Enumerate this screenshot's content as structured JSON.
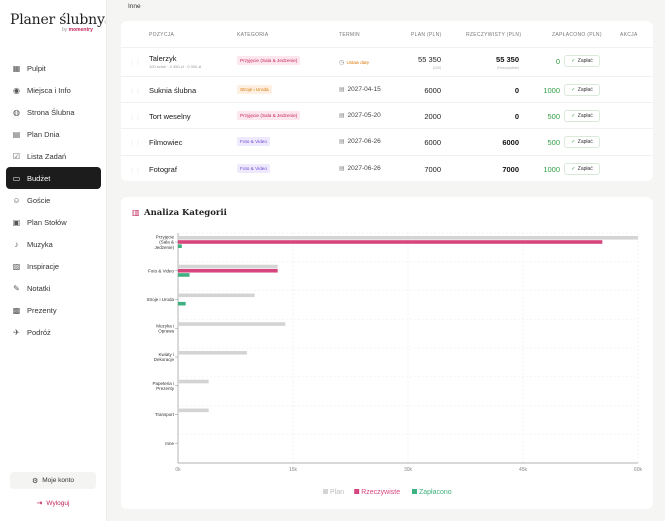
{
  "brand": {
    "title": "Planer ślubny",
    "by": "by",
    "company": "momentry"
  },
  "sidebar": {
    "items": [
      {
        "label": "Pulpit",
        "icon": "grid-icon"
      },
      {
        "label": "Miejsca i Info",
        "icon": "map-pin-icon"
      },
      {
        "label": "Strona Ślubna",
        "icon": "globe-icon"
      },
      {
        "label": "Plan Dnia",
        "icon": "calendar-icon"
      },
      {
        "label": "Lista Zadań",
        "icon": "checklist-icon"
      },
      {
        "label": "Budżet",
        "icon": "wallet-icon",
        "active": true
      },
      {
        "label": "Goście",
        "icon": "users-icon"
      },
      {
        "label": "Plan Stołów",
        "icon": "layout-icon"
      },
      {
        "label": "Muzyka",
        "icon": "music-icon"
      },
      {
        "label": "Inspiracje",
        "icon": "image-icon"
      },
      {
        "label": "Notatki",
        "icon": "note-icon"
      },
      {
        "label": "Prezenty",
        "icon": "gift-icon"
      },
      {
        "label": "Podróż",
        "icon": "plane-icon"
      }
    ],
    "account_label": "Moje konto",
    "logout_label": "Wyloguj"
  },
  "section_label": "Inne",
  "table": {
    "headers": {
      "position": "POZYCJA",
      "category": "KATEGORIA",
      "term": "TERMIN",
      "plan": "PLAN (PLN)",
      "actual": "RZECZYWISTY (PLN)",
      "paid": "ZAPŁACONO (PLN)",
      "action": "AKCJA"
    },
    "pay_label": "Zapłać",
    "rows": [
      {
        "name": "Talerzyk",
        "sub": "100 sztuk · 0 450 zł · 0 000 zł",
        "category": "Przyjęcie (Sala & Jedzenie)",
        "cat_style": "pink",
        "date": "Ustaw datę",
        "date_warn": true,
        "plan": "55 350",
        "plan_sub": "(100)",
        "actual": "55 350",
        "actual_sub": "(Rzeczywiste)",
        "paid": "0"
      },
      {
        "name": "Suknia ślubna",
        "sub": "",
        "category": "Stroje i Uroda",
        "cat_style": "orange",
        "date": "2027-04-15",
        "date_warn": false,
        "plan": "6000",
        "plan_sub": "",
        "actual": "0",
        "actual_sub": "",
        "paid": "1000"
      },
      {
        "name": "Tort weselny",
        "sub": "",
        "category": "Przyjęcie (Sala & Jedzenie)",
        "cat_style": "pink",
        "date": "2027-05-20",
        "date_warn": false,
        "plan": "2000",
        "plan_sub": "",
        "actual": "0",
        "actual_sub": "",
        "paid": "500"
      },
      {
        "name": "Filmowiec",
        "sub": "",
        "category": "Foto & Video",
        "cat_style": "purple",
        "date": "2027-06-26",
        "date_warn": false,
        "plan": "6000",
        "plan_sub": "",
        "actual": "6000",
        "actual_sub": "",
        "paid": "500"
      },
      {
        "name": "Fotograf",
        "sub": "",
        "category": "Foto & Video",
        "cat_style": "purple",
        "date": "2027-06-26",
        "date_warn": false,
        "plan": "7000",
        "plan_sub": "",
        "actual": "7000",
        "actual_sub": "",
        "paid": "1000"
      }
    ]
  },
  "chart_title": "Analiza Kategorii",
  "chart_data": {
    "type": "bar",
    "orientation": "horizontal",
    "categories": [
      [
        "Przyjęcie",
        "(Sala &",
        "Jedzenie)"
      ],
      [
        "Foto & Video"
      ],
      [
        "Stroje i Uroda"
      ],
      [
        "Muzyka i",
        "Oprawa"
      ],
      [
        "Kwiaty i",
        "Dekoracje"
      ],
      [
        "Papeteria i",
        "Prezenty"
      ],
      [
        "Transport"
      ],
      [
        "Inne"
      ]
    ],
    "series": [
      {
        "name": "Plan",
        "color": "#d4d4d4",
        "values": [
          60000,
          13000,
          10000,
          14000,
          9000,
          4000,
          4000,
          0
        ]
      },
      {
        "name": "Rzeczywiste",
        "color": "#d6457d",
        "values": [
          55350,
          13000,
          0,
          0,
          0,
          0,
          0,
          0
        ]
      },
      {
        "name": "Zapłacono",
        "color": "#3fb07f",
        "values": [
          500,
          1500,
          1000,
          0,
          0,
          0,
          0,
          0
        ]
      }
    ],
    "x_ticks": [
      "0k",
      "15k",
      "30k",
      "45k",
      "60k"
    ],
    "xlim": [
      0,
      60000
    ],
    "grid": true,
    "legend": "bottom-center"
  }
}
